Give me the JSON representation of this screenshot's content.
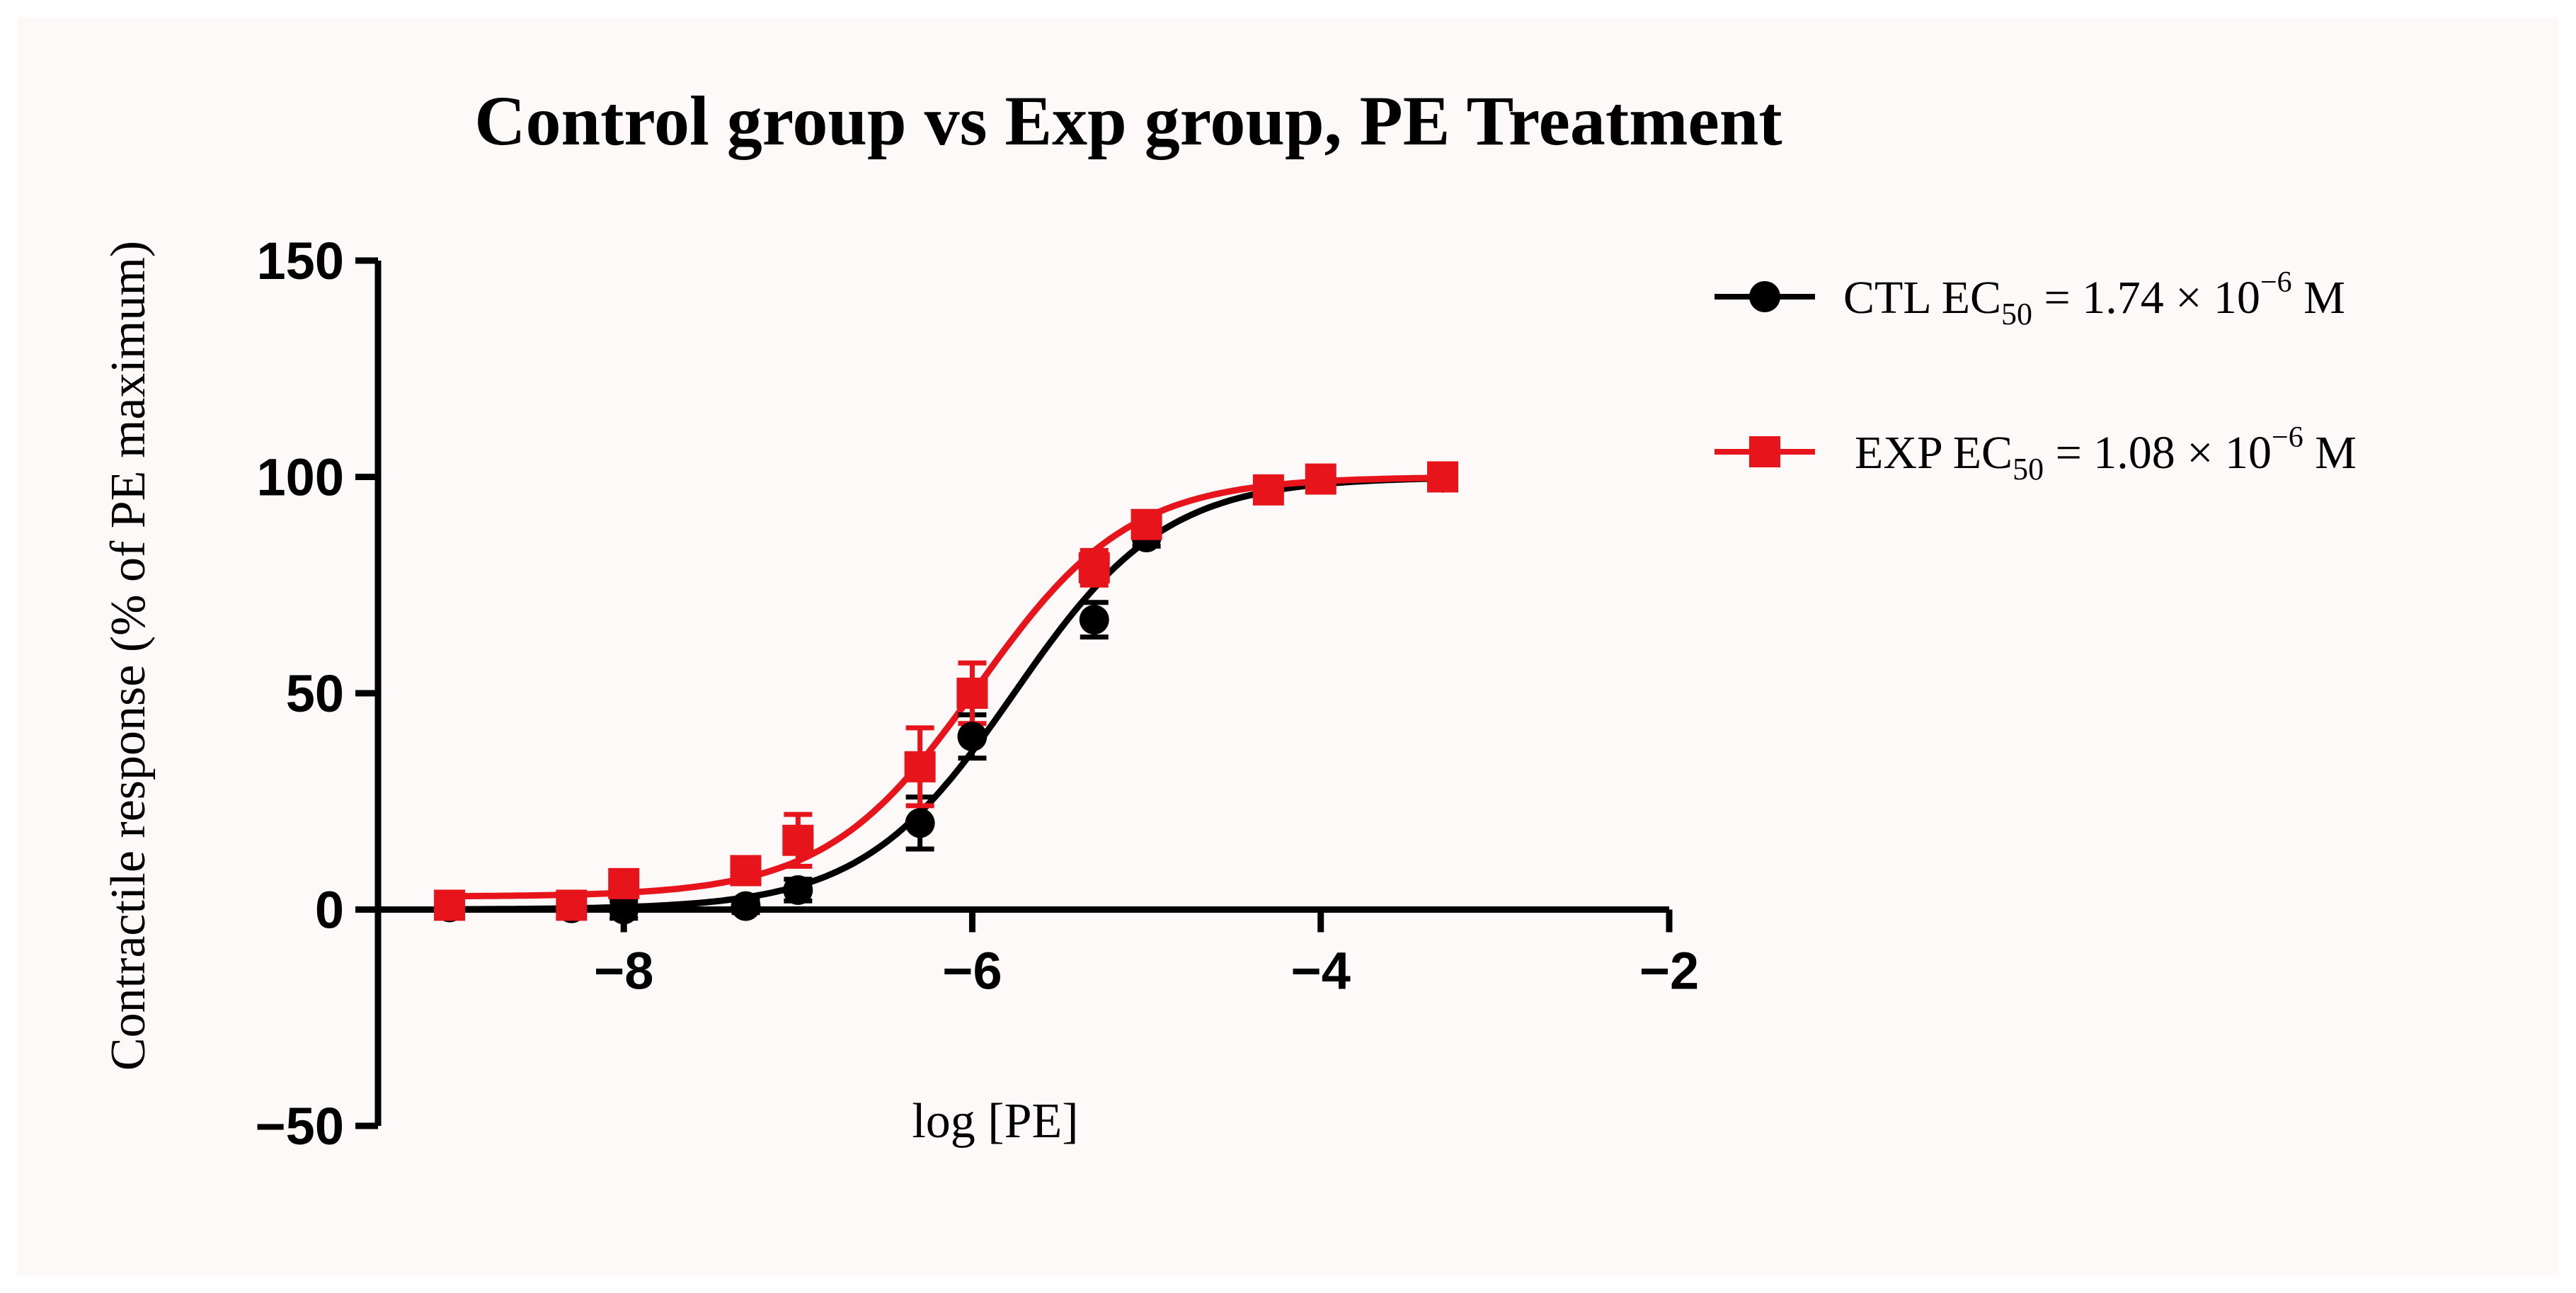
{
  "chart_data": {
    "type": "line",
    "title": "Control group vs Exp group, PE Treatment",
    "xlabel": "log [PE]",
    "ylabel": "Contractile response (% of PE maximum)",
    "xlim": [
      -9.5,
      -2
    ],
    "ylim": [
      -50,
      150
    ],
    "xticks": [
      -8,
      -6,
      -4,
      -2
    ],
    "yticks": [
      -50,
      0,
      50,
      100,
      150
    ],
    "xtick_labels": [
      "−8",
      "−6",
      "−4",
      "−2"
    ],
    "ytick_labels": [
      "−50",
      "0",
      "50",
      "100",
      "150"
    ],
    "legend_position": "right",
    "series": [
      {
        "name": "CTL",
        "legend_label": "CTL EC",
        "ec_sub": "50",
        "ec_mid": " = 1.74 × 10",
        "ec_exp": "−6",
        "ec_unit": " M",
        "color": "#000000",
        "marker": "circle",
        "fit": {
          "bottom": 0,
          "top": 100,
          "logEC50": -5.76,
          "hillslope": 1.0
        },
        "points": [
          {
            "x": -9.0,
            "y": 0.5,
            "err": 1.0
          },
          {
            "x": -8.3,
            "y": 0.3,
            "err": 1.0
          },
          {
            "x": -8.0,
            "y": 0.0,
            "err": 2.0
          },
          {
            "x": -7.3,
            "y": 0.8,
            "err": 1.5
          },
          {
            "x": -7.0,
            "y": 4.5,
            "err": 2.5
          },
          {
            "x": -6.3,
            "y": 20.0,
            "err": 6.0
          },
          {
            "x": -6.0,
            "y": 40.0,
            "err": 5.0
          },
          {
            "x": -5.3,
            "y": 67.0,
            "err": 4.0
          },
          {
            "x": -5.0,
            "y": 86.0,
            "err": 2.0
          },
          {
            "x": -4.3,
            "y": 97.0,
            "err": 1.5
          },
          {
            "x": -4.0,
            "y": 99.5,
            "err": 1.0
          },
          {
            "x": -3.3,
            "y": 99.8,
            "err": 0.8
          }
        ]
      },
      {
        "name": "EXP",
        "legend_label": "EXP EC",
        "ec_sub": "50",
        "ec_mid": " = 1.08 × 10",
        "ec_exp": "−6",
        "ec_unit": " M",
        "color": "#e8141c",
        "marker": "square",
        "fit": {
          "bottom": 3,
          "top": 100,
          "logEC50": -5.97,
          "hillslope": 1.0
        },
        "points": [
          {
            "x": -9.0,
            "y": 1.0,
            "err": 1.5
          },
          {
            "x": -8.3,
            "y": 1.0,
            "err": 1.5
          },
          {
            "x": -8.0,
            "y": 6.0,
            "err": 2.5
          },
          {
            "x": -7.3,
            "y": 9.0,
            "err": 3.0
          },
          {
            "x": -7.0,
            "y": 16.0,
            "err": 6.0
          },
          {
            "x": -6.3,
            "y": 33.0,
            "err": 9.0
          },
          {
            "x": -6.0,
            "y": 50.0,
            "err": 7.0
          },
          {
            "x": -5.3,
            "y": 79.0,
            "err": 4.0
          },
          {
            "x": -5.0,
            "y": 89.0,
            "err": 2.0
          },
          {
            "x": -4.3,
            "y": 97.0,
            "err": 1.5
          },
          {
            "x": -4.0,
            "y": 99.5,
            "err": 1.0
          },
          {
            "x": -3.3,
            "y": 100.0,
            "err": 1.0
          }
        ]
      }
    ]
  }
}
